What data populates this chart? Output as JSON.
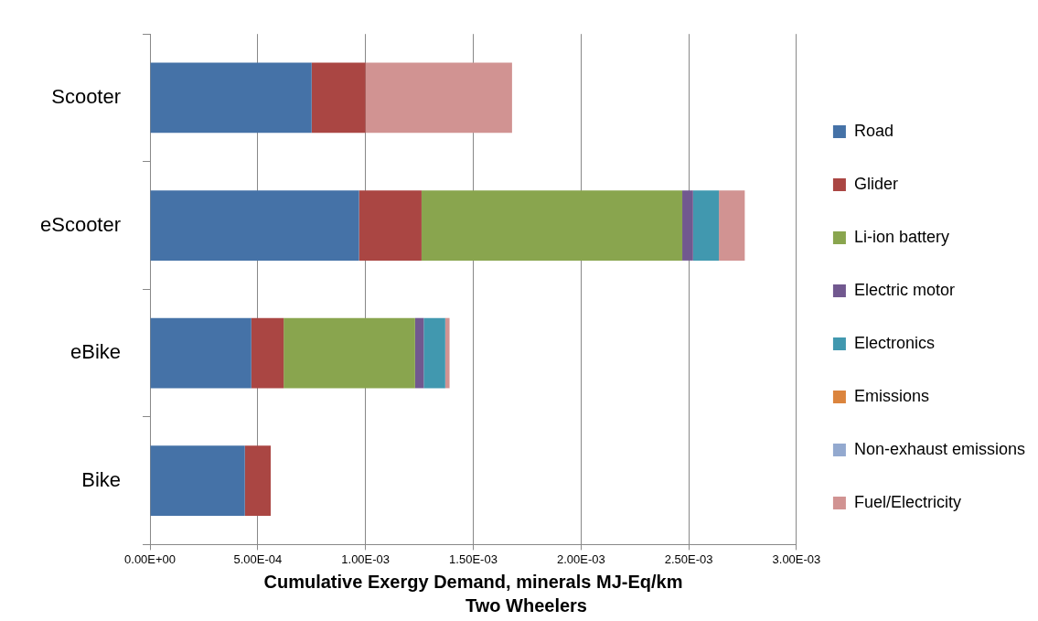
{
  "chart_data": {
    "type": "bar",
    "orientation": "horizontal",
    "stacked": true,
    "title": "Two Wheelers",
    "xlabel": "Cumulative Exergy Demand, minerals MJ-Eq/km",
    "categories": [
      "Scooter",
      "eScooter",
      "eBike",
      "Bike"
    ],
    "series": [
      {
        "name": "Road",
        "color": "#4572a7",
        "values": [
          0.00075,
          0.00097,
          0.00047,
          0.00044
        ]
      },
      {
        "name": "Glider",
        "color": "#aa4643",
        "values": [
          0.00025,
          0.00029,
          0.00015,
          0.00012
        ]
      },
      {
        "name": "Li-ion battery",
        "color": "#89a54e",
        "values": [
          0,
          0.00121,
          0.00061,
          0
        ]
      },
      {
        "name": "Electric motor",
        "color": "#71588f",
        "values": [
          0,
          5e-05,
          4e-05,
          0
        ]
      },
      {
        "name": "Electronics",
        "color": "#4198af",
        "values": [
          0,
          0.00012,
          0.0001,
          0
        ]
      },
      {
        "name": "Emissions",
        "color": "#db843d",
        "values": [
          0,
          0,
          0,
          0
        ]
      },
      {
        "name": "Non-exhaust emissions",
        "color": "#93a9cf",
        "values": [
          0,
          0,
          0,
          0
        ]
      },
      {
        "name": "Fuel/Electricity",
        "color": "#d19392",
        "values": [
          0.00068,
          0.00012,
          2e-05,
          0
        ]
      }
    ],
    "xlim": [
      0,
      0.003
    ],
    "xticks": [
      {
        "value": 0,
        "label": "0.00E+00"
      },
      {
        "value": 0.0005,
        "label": "5.00E-04"
      },
      {
        "value": 0.001,
        "label": "1.00E-03"
      },
      {
        "value": 0.0015,
        "label": "1.50E-03"
      },
      {
        "value": 0.002,
        "label": "2.00E-03"
      },
      {
        "value": 0.0025,
        "label": "2.50E-03"
      },
      {
        "value": 0.003,
        "label": "3.00E-03"
      }
    ],
    "grid": "x",
    "legend": "right"
  }
}
